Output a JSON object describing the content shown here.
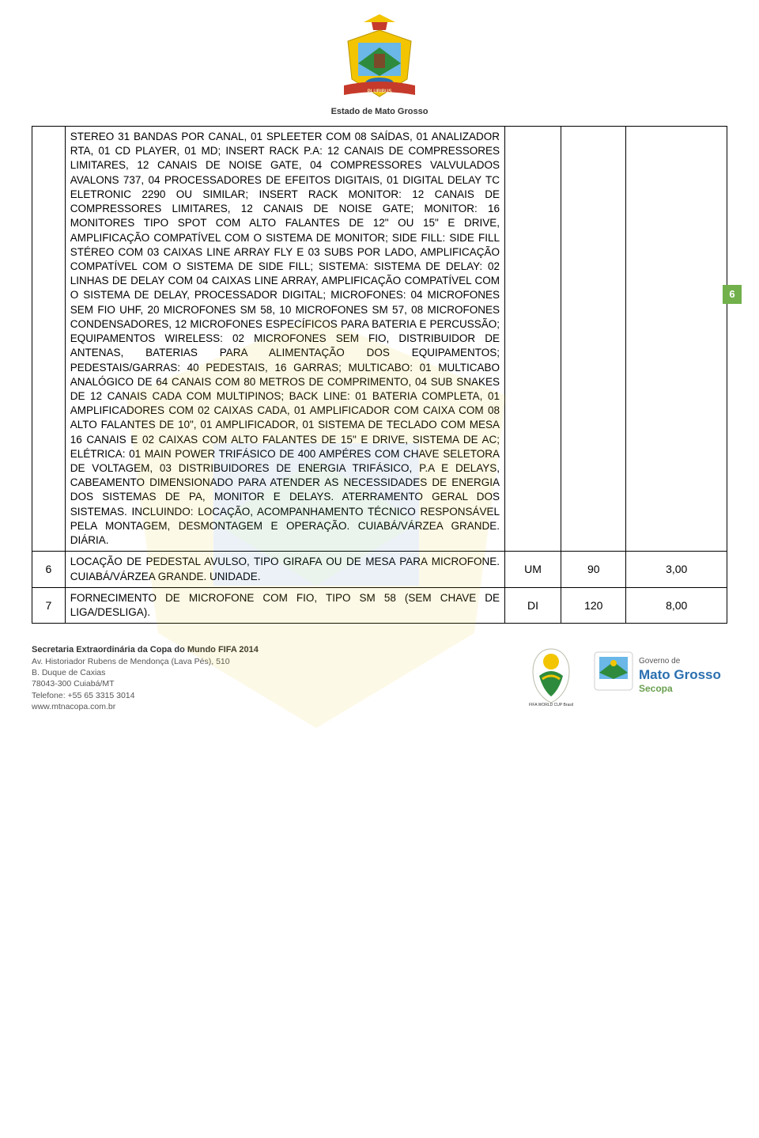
{
  "header": {
    "state_caption": "Estado de Mato Grosso"
  },
  "page_number": "6",
  "table": {
    "rows": [
      {
        "num": "",
        "desc": "STEREO 31 BANDAS POR CANAL, 01 SPLEETER COM 08 SAÍDAS, 01 ANALIZADOR RTA, 01 CD PLAYER, 01 MD; INSERT RACK P.A: 12 CANAIS DE COMPRESSORES LIMITARES, 12 CANAIS DE NOISE GATE, 04 COMPRESSORES VALVULADOS AVALONS 737, 04 PROCESSADORES DE EFEITOS DIGITAIS, 01 DIGITAL DELAY TC ELETRONIC 2290 OU SIMILAR; INSERT RACK MONITOR: 12 CANAIS DE COMPRESSORES LIMITARES, 12 CANAIS DE NOISE GATE; MONITOR: 16 MONITORES TIPO SPOT COM ALTO FALANTES DE 12\" OU 15\" E DRIVE, AMPLIFICAÇÃO COMPATÍVEL COM O SISTEMA DE MONITOR; SIDE FILL: SIDE FILL STÉREO COM 03 CAIXAS LINE ARRAY FLY E 03 SUBS POR LADO, AMPLIFICAÇÃO COMPATÍVEL COM O SISTEMA DE SIDE FILL; SISTEMA: SISTEMA DE DELAY: 02 LINHAS DE DELAY COM 04 CAIXAS LINE ARRAY, AMPLIFICAÇÃO COMPATÍVEL COM O SISTEMA DE DELAY, PROCESSADOR DIGITAL; MICROFONES: 04 MICROFONES SEM FIO UHF, 20 MICROFONES SM 58, 10 MICROFONES SM 57, 08 MICROFONES CONDENSADORES, 12 MICROFONES ESPECÍFICOS PARA BATERIA E PERCUSSÃO; EQUIPAMENTOS WIRELESS: 02 MICROFONES SEM FIO, DISTRIBUIDOR DE ANTENAS, BATERIAS PARA ALIMENTAÇÃO DOS EQUIPAMENTOS; PEDESTAIS/GARRAS: 40 PEDESTAIS, 16 GARRAS; MULTICABO: 01 MULTICABO ANALÓGICO DE 64 CANAIS COM 80 METROS DE COMPRIMENTO, 04 SUB SNAKES DE 12 CANAIS CADA COM MULTIPINOS; BACK LINE: 01 BATERIA COMPLETA, 01 AMPLIFICADORES COM 02 CAIXAS CADA, 01 AMPLIFICADOR COM CAIXA COM 08 ALTO FALANTES DE 10\", 01 AMPLIFICADOR, 01 SISTEMA DE TECLADO COM MESA 16 CANAIS E 02 CAIXAS COM ALTO FALANTES DE 15\" E DRIVE, SISTEMA DE AC; ELÉTRICA: 01 MAIN POWER TRIFÁSICO DE 400 AMPÉRES COM CHAVE SELETORA DE VOLTAGEM, 03 DISTRIBUIDORES DE ENERGIA TRIFÁSICO, P.A E DELAYS, CABEAMENTO DIMENSIONADO PARA ATENDER AS NECESSIDADES DE ENERGIA DOS SISTEMAS DE PA, MONITOR E DELAYS. ATERRAMENTO GERAL DOS SISTEMAS. INCLUINDO: LOCAÇÃO, ACOMPANHAMENTO TÉCNICO RESPONSÁVEL PELA MONTAGEM, DESMONTAGEM E OPERAÇÃO. CUIABÁ/VÁRZEA GRANDE. DIÁRIA.",
        "unit": "",
        "qty": "",
        "val": ""
      },
      {
        "num": "6",
        "desc": "LOCAÇÃO DE PEDESTAL AVULSO, TIPO GIRAFA OU DE MESA PARA MICROFONE. CUIABÁ/VÁRZEA GRANDE. UNIDADE.",
        "unit": "UM",
        "qty": "90",
        "val": "3,00"
      },
      {
        "num": "7",
        "desc": "FORNECIMENTO DE MICROFONE COM FIO, TIPO SM 58 (SEM CHAVE DE LIGA/DESLIGA).",
        "unit": "DI",
        "qty": "120",
        "val": "8,00"
      }
    ]
  },
  "footer": {
    "org_title": "Secretaria Extraordinária da Copa do Mundo FIFA 2014",
    "address1": "Av. Historiador Rubens de Mendonça (Lava Pés), 510",
    "address2": "B. Duque de Caxias",
    "address3": "78043-300 Cuiabá/MT",
    "phone": "Telefone: +55 65 3315 3014",
    "site": "www.mtnacopa.com.br"
  },
  "colors": {
    "page_badge_bg": "#71b04b",
    "page_badge_fg": "#ffffff",
    "logo_yellow": "#f2c500",
    "logo_green": "#2e8b3d",
    "logo_blue": "#2a6fb0",
    "logo_red": "#c63a2b",
    "banner_green": "#6aa050"
  }
}
